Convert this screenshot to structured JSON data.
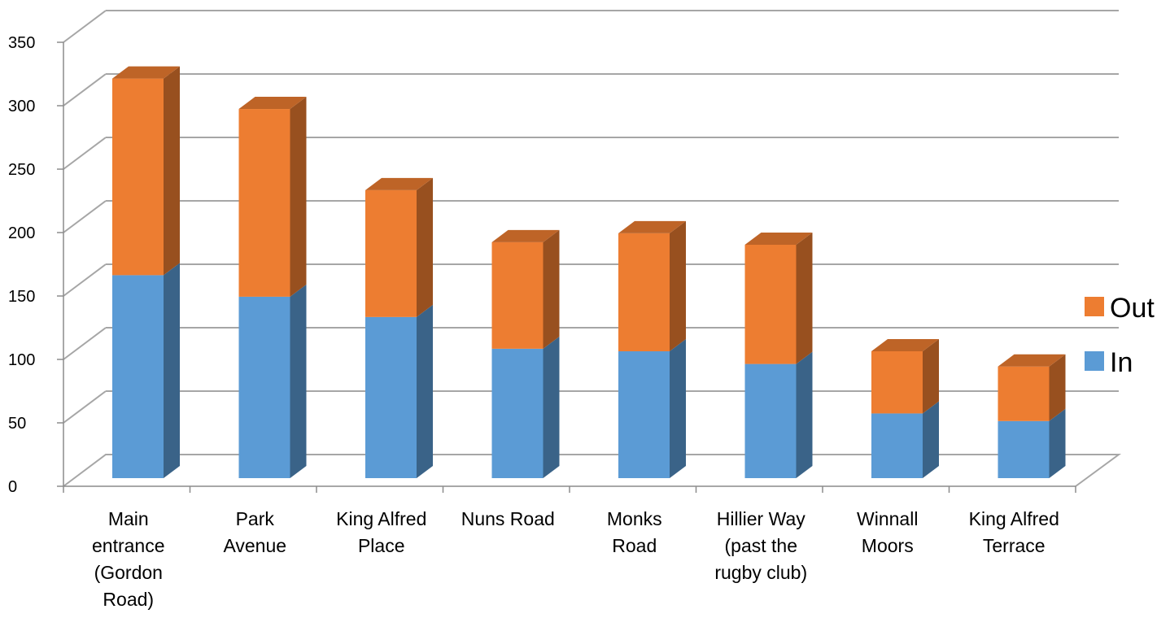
{
  "chart_data": {
    "type": "bar",
    "stacked": true,
    "three_d": true,
    "categories": [
      [
        "Main",
        "entrance",
        "(Gordon",
        "Road)"
      ],
      [
        "Park",
        "Avenue"
      ],
      [
        "King Alfred",
        "Place"
      ],
      [
        "Nuns Road"
      ],
      [
        "Monks",
        "Road"
      ],
      [
        "Hillier Way",
        "(past the",
        "rugby club)"
      ],
      [
        "Winnall",
        "Moors"
      ],
      [
        "King Alfred",
        "Terrace"
      ]
    ],
    "series": [
      {
        "name": "In",
        "color": "#5B9BD5",
        "values": [
          160,
          143,
          127,
          102,
          100,
          90,
          51,
          45
        ]
      },
      {
        "name": "Out",
        "color": "#ED7D31",
        "values": [
          155,
          148,
          100,
          84,
          93,
          94,
          49,
          43
        ]
      }
    ],
    "ylim": [
      0,
      350
    ],
    "yticks": [
      0,
      50,
      100,
      150,
      200,
      250,
      300,
      350
    ],
    "grid": true,
    "legend": "right"
  }
}
